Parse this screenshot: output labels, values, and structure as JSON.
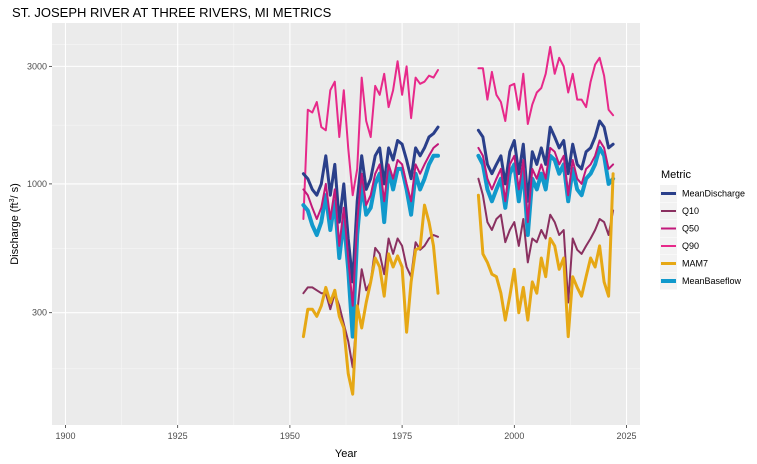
{
  "chart_data": {
    "type": "line",
    "title": "ST. JOSEPH RIVER AT THREE RIVERS, MI  METRICS",
    "xlabel": "Year",
    "ylabel": "Discharge (ft",
    "ylabel_sup": "3",
    "ylabel_tail": "/ s)",
    "y_scale": "log",
    "xlim": [
      1897,
      2028
    ],
    "ylim": [
      105,
      4500
    ],
    "x_ticks": [
      1900,
      1925,
      1950,
      1975,
      2000,
      2025
    ],
    "x_tick_labels": [
      "1900",
      "1925",
      "1950",
      "1975",
      "2000",
      "2025"
    ],
    "y_ticks": [
      300,
      1000,
      3000
    ],
    "y_tick_labels": [
      "300",
      "1000",
      "3000"
    ],
    "grid": true,
    "legend_position": "right",
    "legend_title": "Metric",
    "series": [
      {
        "name": "Q90",
        "color": "#e7298a",
        "segments": [
          {
            "x": [
              1953,
              1954,
              1955,
              1956,
              1957,
              1958,
              1959,
              1960,
              1961,
              1962,
              1963,
              1964,
              1965,
              1966,
              1967,
              1968,
              1969,
              1970,
              1971,
              1972,
              1973,
              1974,
              1975,
              1976,
              1977,
              1978,
              1979,
              1980,
              1981,
              1982,
              1983
            ],
            "y": [
              720,
              2000,
              1950,
              2150,
              1700,
              1650,
              2400,
              2600,
              1550,
              2400,
              1400,
              900,
              1150,
              2700,
              1800,
              1550,
              2500,
              2300,
              2800,
              2050,
              2400,
              3150,
              2300,
              3000,
              1850,
              2700,
              2550,
              2600,
              2750,
              2700,
              2900
            ]
          },
          {
            "x": [
              1992,
              1993,
              1994,
              1995,
              1996,
              1997,
              1998,
              1999,
              2000,
              2001,
              2002,
              2003,
              2004,
              2005,
              2006,
              2007,
              2008,
              2009,
              2010,
              2011,
              2012,
              2013,
              2014,
              2015,
              2016,
              2017,
              2018,
              2019,
              2020,
              2021,
              2022
            ],
            "y": [
              2950,
              2950,
              2200,
              2850,
              2300,
              2150,
              1800,
              2500,
              2550,
              2000,
              2800,
              1750,
              2100,
              2350,
              2450,
              2800,
              3600,
              2800,
              3250,
              3000,
              2350,
              2800,
              2200,
              2200,
              2050,
              2600,
              3050,
              3250,
              2750,
              2000,
              1900
            ]
          }
        ]
      },
      {
        "name": "MeanDischarge",
        "color": "#2a3f8a",
        "segments": [
          {
            "x": [
              1953,
              1954,
              1955,
              1956,
              1957,
              1958,
              1959,
              1960,
              1961,
              1962,
              1963,
              1964,
              1965,
              1966,
              1967,
              1968,
              1969,
              1970,
              1971,
              1972,
              1973,
              1974,
              1975,
              1976,
              1977,
              1978,
              1979,
              1980,
              1981,
              1982,
              1983
            ],
            "y": [
              1100,
              1050,
              950,
              900,
              1000,
              1300,
              900,
              1200,
              700,
              1000,
              600,
              400,
              850,
              1300,
              950,
              1050,
              1300,
              1400,
              1000,
              1400,
              1250,
              1500,
              1450,
              1250,
              1050,
              1400,
              1300,
              1400,
              1550,
              1600,
              1700
            ]
          },
          {
            "x": [
              1992,
              1993,
              1994,
              1995,
              1996,
              1997,
              1998,
              1999,
              2000,
              2001,
              2002,
              2003,
              2004,
              2005,
              2006,
              2007,
              2008,
              2009,
              2010,
              2011,
              2012,
              2013,
              2014,
              2015,
              2016,
              2017,
              2018,
              2019,
              2020,
              2021,
              2022
            ],
            "y": [
              1650,
              1550,
              1200,
              1100,
              1200,
              1300,
              1000,
              1350,
              1500,
              1100,
              1450,
              850,
              1350,
              1200,
              1400,
              1200,
              1700,
              1550,
              1400,
              1500,
              1100,
              1450,
              1200,
              1150,
              1350,
              1400,
              1550,
              1800,
              1700,
              1400,
              1450
            ]
          }
        ]
      },
      {
        "name": "MeanBaseflow",
        "color": "#1199cc",
        "segments": [
          {
            "x": [
              1953,
              1954,
              1955,
              1956,
              1957,
              1958,
              1959,
              1960,
              1961,
              1962,
              1963,
              1964,
              1965,
              1966,
              1967,
              1968,
              1969,
              1970,
              1971,
              1972,
              1973,
              1974,
              1975,
              1976,
              1977,
              1978,
              1979,
              1980,
              1981,
              1982,
              1983
            ],
            "y": [
              820,
              780,
              680,
              620,
              700,
              900,
              650,
              850,
              500,
              720,
              450,
              240,
              620,
              1000,
              750,
              800,
              1000,
              1100,
              700,
              1150,
              950,
              1150,
              1150,
              950,
              750,
              1100,
              950,
              1050,
              1200,
              1300,
              1300
            ]
          },
          {
            "x": [
              1992,
              1993,
              1994,
              1995,
              1996,
              1997,
              1998,
              1999,
              2000,
              2001,
              2002,
              2003,
              2004,
              2005,
              2006,
              2007,
              2008,
              2009,
              2010,
              2011,
              2012,
              2013,
              2014,
              2015,
              2016,
              2017,
              2018,
              2019,
              2020,
              2021,
              2022
            ],
            "y": [
              1300,
              1200,
              950,
              850,
              950,
              1050,
              800,
              1100,
              1200,
              850,
              1150,
              620,
              1050,
              950,
              1100,
              950,
              1300,
              1250,
              1100,
              1200,
              850,
              1150,
              950,
              900,
              1050,
              1100,
              1200,
              1400,
              1300,
              1000,
              1050
            ]
          }
        ]
      },
      {
        "name": "Q50",
        "color": "#c2187a",
        "segments": [
          {
            "x": [
              1953,
              1954,
              1955,
              1956,
              1957,
              1958,
              1959,
              1960,
              1961,
              1962,
              1963,
              1964,
              1965,
              1966,
              1967,
              1968,
              1969,
              1970,
              1971,
              1972,
              1973,
              1974,
              1975,
              1976,
              1977,
              1978,
              1979,
              1980,
              1981,
              1982,
              1983
            ],
            "y": [
              950,
              900,
              800,
              720,
              800,
              1000,
              720,
              950,
              560,
              800,
              500,
              320,
              700,
              1100,
              820,
              900,
              1100,
              1200,
              850,
              1200,
              1050,
              1250,
              1200,
              1000,
              850,
              1200,
              1100,
              1200,
              1300,
              1400,
              1450
            ]
          },
          {
            "x": [
              1992,
              1993,
              1994,
              1995,
              1996,
              1997,
              1998,
              1999,
              2000,
              2001,
              2002,
              2003,
              2004,
              2005,
              2006,
              2007,
              2008,
              2009,
              2010,
              2011,
              2012,
              2013,
              2014,
              2015,
              2016,
              2017,
              2018,
              2019,
              2020,
              2021,
              2022
            ],
            "y": [
              1400,
              1300,
              1050,
              950,
              1050,
              1150,
              850,
              1200,
              1300,
              950,
              1250,
              700,
              1150,
              1050,
              1200,
              1050,
              1400,
              1350,
              1200,
              1300,
              900,
              1250,
              1050,
              1000,
              1150,
              1200,
              1300,
              1500,
              1400,
              1150,
              1200
            ]
          }
        ]
      },
      {
        "name": "Q10",
        "color": "#8a3060",
        "segments": [
          {
            "x": [
              1953,
              1954,
              1955,
              1956,
              1957,
              1958,
              1959,
              1960,
              1961,
              1962,
              1963,
              1964,
              1965,
              1966,
              1967,
              1968,
              1969,
              1970,
              1971,
              1972,
              1973,
              1974,
              1975,
              1976,
              1977,
              1978,
              1979,
              1980,
              1981,
              1982,
              1983
            ],
            "y": [
              360,
              380,
              380,
              370,
              360,
              360,
              310,
              360,
              320,
              270,
              230,
              180,
              300,
              450,
              370,
              400,
              550,
              520,
              430,
              600,
              520,
              600,
              560,
              460,
              420,
              580,
              540,
              560,
              600,
              620,
              610
            ]
          },
          {
            "x": [
              1992,
              1993,
              1994,
              1995,
              1996,
              1997,
              1998,
              1999,
              2000,
              2001,
              2002,
              2003,
              2004,
              2005,
              2006,
              2007,
              2008,
              2009,
              2010,
              2011,
              2012,
              2013,
              2014,
              2015,
              2016,
              2017,
              2018,
              2019,
              2020,
              2021,
              2022
            ],
            "y": [
              1050,
              900,
              700,
              650,
              720,
              750,
              580,
              650,
              700,
              560,
              720,
              480,
              600,
              580,
              650,
              600,
              750,
              700,
              620,
              650,
              330,
              600,
              540,
              520,
              560,
              600,
              650,
              720,
              700,
              620,
              780
            ]
          }
        ]
      },
      {
        "name": "MAM7",
        "color": "#e6a815",
        "segments": [
          {
            "x": [
              1953,
              1954,
              1955,
              1956,
              1957,
              1958,
              1959,
              1960,
              1961,
              1962,
              1963,
              1964,
              1965,
              1966,
              1967,
              1968,
              1969,
              1970,
              1971,
              1972,
              1973,
              1974,
              1975,
              1976,
              1977,
              1978,
              1979,
              1980,
              1981,
              1982,
              1983
            ],
            "y": [
              240,
              310,
              310,
              290,
              320,
              380,
              330,
              370,
              290,
              260,
              170,
              140,
              320,
              260,
              330,
              400,
              500,
              460,
              350,
              520,
              460,
              510,
              460,
              250,
              400,
              540,
              550,
              820,
              700,
              560,
              360
            ]
          },
          {
            "x": [
              1992,
              1993,
              1994,
              1995,
              1996,
              1997,
              1998,
              1999,
              2000,
              2001,
              2002,
              2003,
              2004,
              2005,
              2006,
              2007,
              2008,
              2009,
              2010,
              2011,
              2012,
              2013,
              2014,
              2015,
              2016,
              2017,
              2018,
              2019,
              2020,
              2021,
              2022
            ],
            "y": [
              900,
              520,
              480,
              430,
              420,
              360,
              280,
              350,
              450,
              300,
              380,
              280,
              400,
              360,
              500,
              420,
              600,
              560,
              450,
              500,
              240,
              420,
              380,
              350,
              420,
              500,
              460,
              560,
              400,
              350,
              1100
            ]
          }
        ]
      }
    ],
    "legend_order": [
      "MeanDischarge",
      "Q10",
      "Q50",
      "Q90",
      "MAM7",
      "MeanBaseflow"
    ],
    "legend_widths": {
      "MeanDischarge": 3,
      "Q10": 2,
      "Q50": 2,
      "Q90": 2,
      "MAM7": 3,
      "MeanBaseflow": 4
    }
  }
}
